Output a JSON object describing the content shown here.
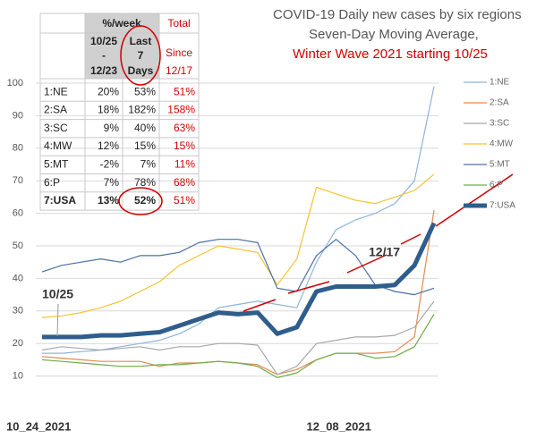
{
  "chart_data": {
    "type": "line",
    "title": [
      "COVID-19 Daily new cases by six regions",
      "Seven-Day Moving Average,",
      "Winter Wave 2021 starting 10/25"
    ],
    "categories": [
      "10_24_2021",
      null,
      null,
      null,
      null,
      null,
      null,
      null,
      null,
      null,
      null,
      null,
      null,
      null,
      null,
      "12_08_2021",
      null,
      null,
      null,
      null,
      null
    ],
    "series": [
      {
        "name": "1:NE",
        "color": "#8eb4da",
        "width": 1.2,
        "values": [
          17,
          17,
          17.5,
          18,
          19,
          20,
          21,
          23,
          26,
          31,
          32,
          33,
          32,
          31,
          45,
          55,
          58,
          60,
          63,
          70,
          99
        ]
      },
      {
        "name": "2:SA",
        "color": "#e6894e",
        "width": 1.2,
        "values": [
          16,
          15.5,
          15,
          14.5,
          14.5,
          14.5,
          13,
          14,
          14,
          14.5,
          14,
          13.5,
          10.5,
          12,
          15,
          17,
          17,
          17,
          17.5,
          22,
          61
        ]
      },
      {
        "name": "3:SC",
        "color": "#a9a9a9",
        "width": 1.2,
        "values": [
          18,
          19,
          18.5,
          18,
          18.5,
          19,
          18,
          19,
          19,
          20,
          20,
          19.5,
          10.5,
          13,
          20,
          21,
          22,
          22,
          22.5,
          25,
          33
        ]
      },
      {
        "name": "4:MW",
        "color": "#f4c430",
        "width": 1.2,
        "values": [
          28,
          28.5,
          29.5,
          31,
          33,
          36,
          39,
          44,
          47,
          50,
          49,
          48,
          38,
          46,
          68,
          66,
          64,
          63,
          65,
          67,
          72
        ]
      },
      {
        "name": "5:MT",
        "color": "#4a6fa5",
        "width": 1.2,
        "values": [
          42,
          44,
          45,
          46,
          45,
          47,
          47,
          48,
          51,
          52,
          52,
          51,
          37,
          36,
          47,
          52,
          47,
          38,
          36,
          35,
          37
        ]
      },
      {
        "name": "6:P",
        "color": "#70ad47",
        "width": 1.2,
        "values": [
          15,
          14.5,
          14,
          13.5,
          13,
          13,
          13.5,
          13.5,
          14,
          14.5,
          14,
          13,
          9.5,
          11,
          15,
          17,
          17,
          15.5,
          16,
          19,
          29
        ]
      },
      {
        "name": "7:USA",
        "color": "#2f5d8c",
        "width": 5,
        "values": [
          22,
          22,
          22,
          22.5,
          22.5,
          23,
          23.5,
          25.5,
          27.5,
          29.5,
          29,
          29.5,
          23,
          25,
          36,
          37.5,
          37.5,
          37.5,
          38,
          44,
          57
        ]
      }
    ],
    "annotations": [
      "10/25",
      "12/17"
    ],
    "ylim": [
      0,
      100
    ],
    "yticks": [
      10,
      20,
      30,
      40,
      50,
      60,
      70,
      80,
      90,
      100
    ],
    "grid": true
  },
  "table": {
    "header": {
      "perweek": "%/week",
      "total": "Total",
      "col1": [
        "10/25",
        "-",
        "12/23"
      ],
      "col2": [
        "Last",
        "7",
        "Days"
      ],
      "col3": [
        "Since",
        "12/17"
      ]
    },
    "rows": [
      [
        "1:NE",
        "20%",
        "53%",
        "51%"
      ],
      [
        "2:SA",
        "18%",
        "182%",
        "158%"
      ],
      [
        "3:SC",
        "9%",
        "40%",
        "63%"
      ],
      [
        "4:MW",
        "12%",
        "15%",
        "15%"
      ],
      [
        "5:MT",
        "-2%",
        "7%",
        "11%"
      ],
      [
        "6:P",
        "7%",
        "78%",
        "68%"
      ],
      [
        "7:USA",
        "13%",
        "52%",
        "51%"
      ]
    ]
  }
}
